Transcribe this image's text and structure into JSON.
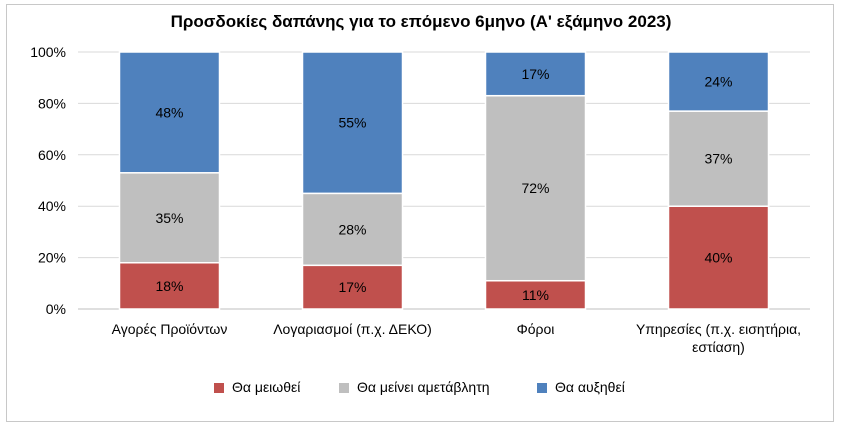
{
  "chart_data": {
    "type": "bar",
    "stacked": true,
    "title": "Προσδοκίες δαπάνης για το επόμενο 6μηνο (Α' εξάμηνο 2023)",
    "xlabel": "",
    "ylabel": "",
    "ylim": [
      0,
      100
    ],
    "yticks": [
      "0%",
      "20%",
      "40%",
      "60%",
      "80%",
      "100%"
    ],
    "grid": true,
    "legend_position": "bottom",
    "categories": [
      [
        "Αγορές Προϊόντων"
      ],
      [
        "Λογαριασμοί (π.χ. ΔΕΚΟ)"
      ],
      [
        "Φόροι"
      ],
      [
        "Υπηρεσίες (π.χ. εισητήρια,",
        "εστίαση)"
      ]
    ],
    "series": [
      {
        "name": "Θα μειωθεί",
        "color": "#c0504d",
        "values": [
          18,
          17,
          11,
          40
        ]
      },
      {
        "name": "Θα μείνει αμετάβλητη",
        "color": "#bfbfbf",
        "values": [
          35,
          28,
          72,
          37
        ]
      },
      {
        "name": "Θα αυξηθεί",
        "color": "#4f81bd",
        "values": [
          48,
          55,
          17,
          24
        ]
      }
    ]
  }
}
